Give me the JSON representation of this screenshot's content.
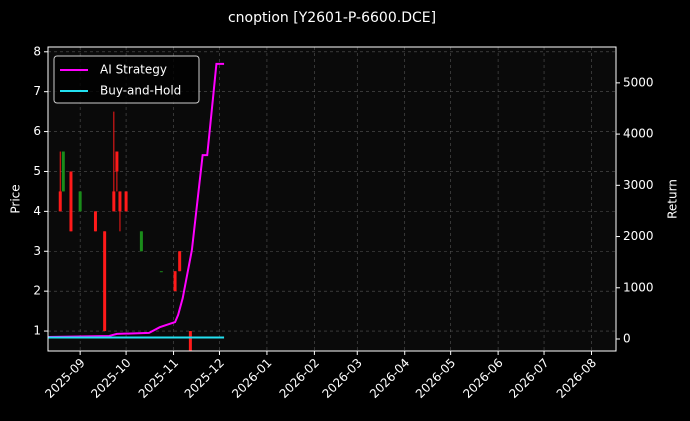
{
  "chart_data": {
    "type": "candlestick",
    "title": "cnoption [Y2601-P-6600.DCE]",
    "ylabel": "Price",
    "y2label": "Return",
    "xlim": [
      "2025-08-11",
      "2026-08-17"
    ],
    "xticks": [
      "2025-09",
      "2025-10",
      "2025-11",
      "2025-12",
      "2026-01",
      "2026-02",
      "2026-03",
      "2026-04",
      "2026-05",
      "2026-06",
      "2026-07",
      "2026-08"
    ],
    "ylim": [
      0.5,
      8.12
    ],
    "yticks": [
      1,
      2,
      3,
      4,
      5,
      6,
      7,
      8
    ],
    "y2lim": [
      -234,
      5700
    ],
    "y2ticks": [
      0,
      1000,
      2000,
      3000,
      4000,
      5000
    ],
    "grid": true,
    "legend": "upper left",
    "up_color": "#1a8c1a",
    "down_color": "#ff1a1a",
    "candles": {
      "x": [
        "2025-08-19",
        "2025-08-21",
        "2025-08-26",
        "2025-09-01",
        "2025-09-11",
        "2025-09-17",
        "2025-09-23",
        "2025-09-25",
        "2025-09-27",
        "2025-10-01",
        "2025-10-11",
        "2025-10-24",
        "2025-11-02",
        "2025-11-05",
        "2025-11-12"
      ],
      "open": [
        4.5,
        4.5,
        5,
        4,
        4,
        3.5,
        4.5,
        5.5,
        4.5,
        4.5,
        3,
        2.5,
        2.5,
        3,
        1
      ],
      "high": [
        5.5,
        5.5,
        5,
        4.5,
        4,
        3.5,
        6.5,
        5.5,
        4.5,
        4.5,
        3.5,
        2.5,
        2.5,
        3,
        1
      ],
      "low": [
        4,
        4.5,
        3.5,
        4,
        3.5,
        1,
        4,
        4.5,
        3.5,
        4,
        3,
        2.5,
        2,
        2.5,
        0.5
      ],
      "close": [
        4,
        5.5,
        3.5,
        4.5,
        3.5,
        1,
        4,
        5,
        4,
        4,
        3.5,
        2.5,
        2,
        2.5,
        0.5
      ]
    },
    "series": [
      {
        "name": "AI Strategy",
        "color": "#ff00ff",
        "axis": "y2",
        "x": [
          "2025-08-11",
          "2025-09-20",
          "2025-09-25",
          "2025-10-16",
          "2025-10-23",
          "2025-11-02",
          "2025-11-04",
          "2025-11-07",
          "2025-11-13",
          "2025-11-20",
          "2025-11-23",
          "2025-11-27",
          "2025-11-29",
          "2025-12-04"
        ],
        "values": [
          40,
          60,
          100,
          120,
          230,
          330,
          470,
          800,
          1740,
          3590,
          3590,
          4770,
          5370,
          5370
        ]
      },
      {
        "name": "Buy-and-Hold",
        "color": "#22e0f0",
        "axis": "y2",
        "x": [
          "2025-08-11",
          "2025-12-04"
        ],
        "values": [
          30,
          30
        ]
      }
    ]
  }
}
